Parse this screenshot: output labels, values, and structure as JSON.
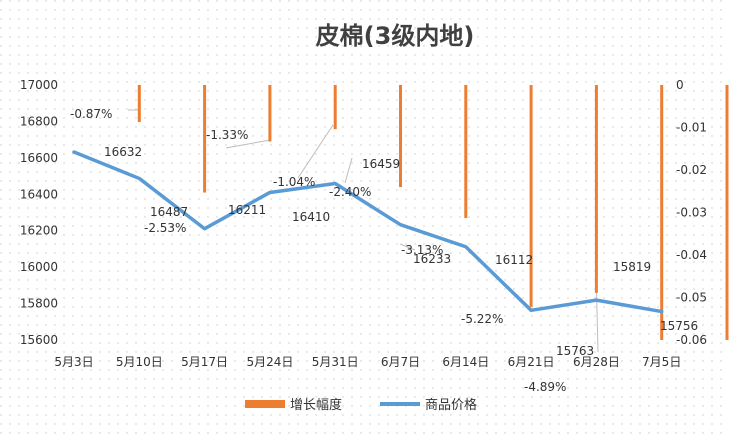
{
  "chart_data": {
    "type": "bar+line",
    "title": "皮棉(3级内地)",
    "categories": [
      "5月3日",
      "5月10日",
      "5月17日",
      "5月24日",
      "5月31日",
      "6月7日",
      "6月14日",
      "6月21日",
      "6月28日",
      "7月5日"
    ],
    "series": [
      {
        "name": "增长幅度",
        "type": "bar",
        "axis": "right",
        "color": "#ED7D31",
        "values": [
          -0.0087,
          -0.0253,
          -0.0133,
          -0.0104,
          -0.024,
          -0.0313,
          -0.0522,
          -0.0489,
          -0.06,
          -0.06
        ],
        "labels": [
          "-0.87%",
          "-2.53%",
          "-1.33%",
          "-1.04%",
          "-2.40%",
          "-3.13%",
          "-5.22%",
          "-4.89%",
          "",
          ""
        ]
      },
      {
        "name": "商品价格",
        "type": "line",
        "axis": "left",
        "color": "#5B9BD5",
        "values": [
          16632,
          16487,
          16211,
          16410,
          16459,
          16233,
          16112,
          15763,
          15819,
          15756
        ],
        "labels": [
          "16632",
          "16487",
          "16211",
          "16410",
          "16459",
          "16233",
          "16112",
          "15763",
          "15819",
          "15756"
        ]
      }
    ],
    "y_left": {
      "min": 15600,
      "max": 17000,
      "step": 200,
      "ticks": [
        "15600",
        "15800",
        "16000",
        "16200",
        "16400",
        "16600",
        "16800",
        "17000"
      ]
    },
    "y_right": {
      "min": -0.06,
      "max": 0,
      "step": 0.01,
      "ticks": [
        "-0.06",
        "-0.05",
        "-0.04",
        "-0.03",
        "-0.02",
        "-0.01",
        "0"
      ]
    },
    "legend_position": "bottom",
    "grid": "dotted background"
  }
}
